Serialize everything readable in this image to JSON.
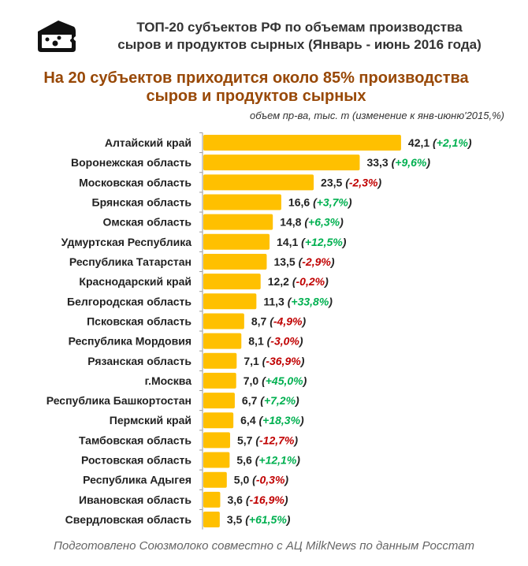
{
  "header": {
    "title_line1": "ТОП-20 субъектов РФ по объемам производства",
    "title_line2": "сыров и продуктов сырных (Январь - июнь 2016 года)",
    "icon": "cheese-icon"
  },
  "subtitle": {
    "line1": "На 20 субъектов приходится около 85% производства",
    "line2": "сыров и продуктов сырных"
  },
  "unit_note": "объем пр-ва, тыс. т  (изменение  к янв-июню'2015,%)",
  "footer": "Подготовлено Союзмолоко совместно с АЦ MilkNews по данным Росстат",
  "colors": {
    "bar": "#FFC000",
    "positive": "#00B050",
    "negative": "#C00000",
    "subtitle": "#984806"
  },
  "chart_data": {
    "type": "bar",
    "orientation": "horizontal",
    "categories": [
      "Алтайский край",
      "Воронежская область",
      "Московская область",
      "Брянская область",
      "Омская область",
      "Удмуртская  Республика",
      "Республика Татарстан",
      "Краснодарский край",
      "Белгородская область",
      "Псковская область",
      "Республика Мордовия",
      "Рязанская область",
      "г.Москва",
      "Республика Башкортостан",
      "Пермский край",
      "Тамбовская область",
      "Ростовская область",
      "Республика Адыгея",
      "Ивановская область",
      "Свердловская область"
    ],
    "values": [
      42.1,
      33.3,
      23.5,
      16.6,
      14.8,
      14.1,
      13.5,
      12.2,
      11.3,
      8.7,
      8.1,
      7.1,
      7.0,
      6.7,
      6.4,
      5.7,
      5.6,
      5.0,
      3.6,
      3.5
    ],
    "value_labels": [
      "42,1",
      "33,3",
      "23,5",
      "16,6",
      "14,8",
      "14,1",
      "13,5",
      "12,2",
      "11,3",
      "8,7",
      "8,1",
      "7,1",
      "7,0",
      "6,7",
      "6,4",
      "5,7",
      "5,6",
      "5,0",
      "3,6",
      "3,5"
    ],
    "change_labels": [
      "+2,1%",
      "+9,6%",
      "-2,3%",
      "+3,7%",
      "+6,3%",
      "+12,5%",
      "-2,9%",
      "-0,2%",
      "+33,8%",
      "-4,9%",
      "-3,0%",
      "-36,9%",
      "+45,0%",
      "+7,2%",
      "+18,3%",
      "-12,7%",
      "+12,1%",
      "-0,3%",
      "-16,9%",
      "+61,5%"
    ],
    "grid": false
  }
}
